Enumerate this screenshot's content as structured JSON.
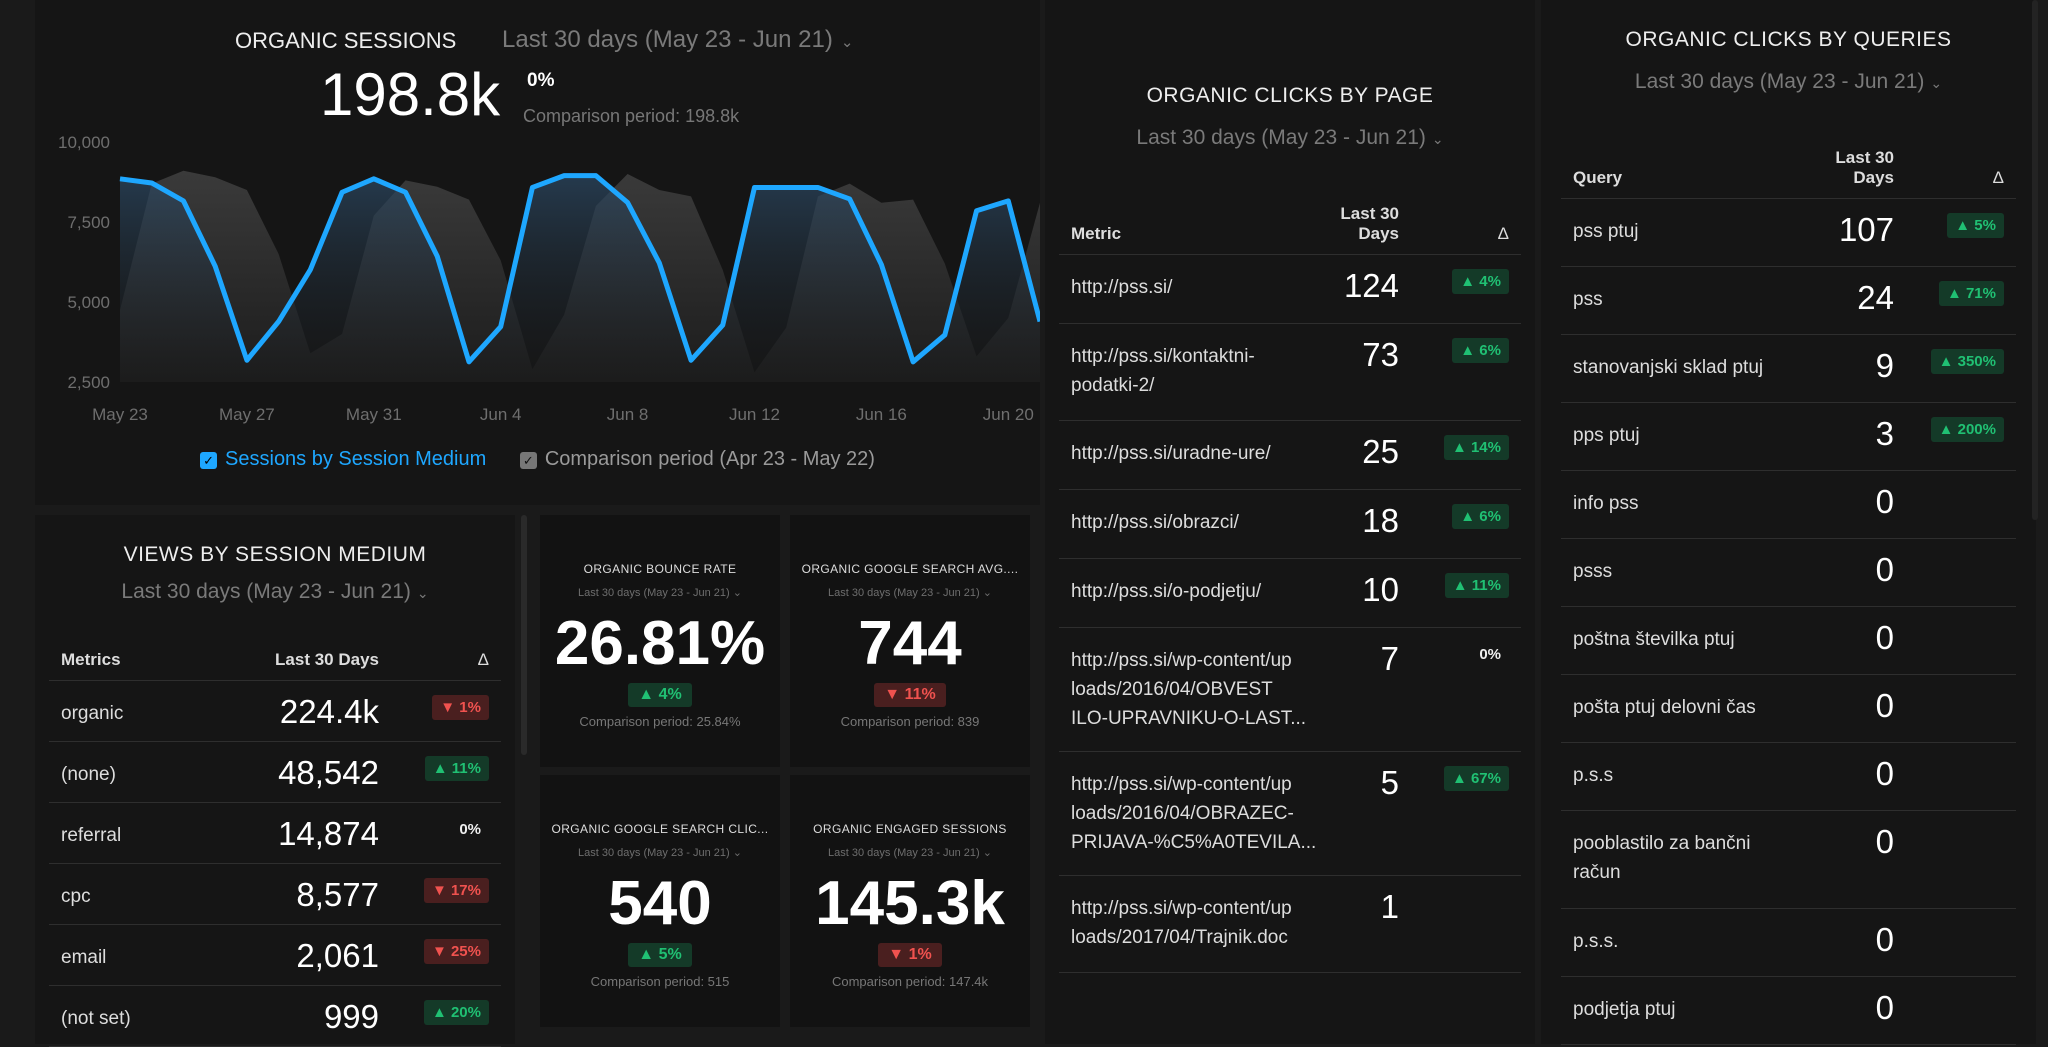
{
  "sessions": {
    "title": "ORGANIC SESSIONS",
    "date": "Last 30 days (May 23 - Jun 21)",
    "value": "198.8k",
    "change": "0%",
    "comparison": "Comparison period: 198.8k",
    "legend": [
      {
        "label": "Sessions by Session Medium",
        "color": "#1ea7ff"
      },
      {
        "label": "Comparison period (Apr 23 - May 22)",
        "color": "#777777"
      }
    ]
  },
  "chart_data": {
    "type": "area",
    "ylim": [
      2500,
      10000
    ],
    "yticks": [
      "10,000",
      "7,500",
      "5,000",
      "2,500"
    ],
    "ytick_values": [
      10000,
      7500,
      5000,
      2500
    ],
    "xticks": [
      "May 23",
      "May 27",
      "May 31",
      "Jun 4",
      "Jun 8",
      "Jun 12",
      "Jun 16",
      "Jun 20"
    ],
    "x": [
      "May 23",
      "May 24",
      "May 25",
      "May 26",
      "May 27",
      "May 28",
      "May 29",
      "May 30",
      "May 31",
      "Jun 1",
      "Jun 2",
      "Jun 3",
      "Jun 4",
      "Jun 5",
      "Jun 6",
      "Jun 7",
      "Jun 8",
      "Jun 9",
      "Jun 10",
      "Jun 11",
      "Jun 12",
      "Jun 13",
      "Jun 14",
      "Jun 15",
      "Jun 16",
      "Jun 17",
      "Jun 18",
      "Jun 19",
      "Jun 20",
      "Jun 21"
    ],
    "series": [
      {
        "name": "Sessions by Session Medium",
        "color": "#1ea7ff",
        "values": [
          8850,
          8720,
          8160,
          6120,
          3180,
          4390,
          6010,
          8430,
          8850,
          8430,
          6430,
          3130,
          4230,
          8580,
          8950,
          8950,
          8110,
          6220,
          3180,
          4280,
          8580,
          8580,
          8580,
          8220,
          6170,
          3130,
          3970,
          7850,
          8160,
          4390
        ]
      },
      {
        "name": "Comparison period (Apr 23 - May 22)",
        "color": "#3a3a3a",
        "values": [
          4750,
          8700,
          9100,
          8900,
          8500,
          6500,
          3400,
          4000,
          7700,
          8800,
          8600,
          8200,
          6300,
          2900,
          4600,
          8000,
          9000,
          8500,
          8300,
          6000,
          2800,
          4200,
          8300,
          8700,
          8100,
          8200,
          6200,
          3300,
          4500,
          8100
        ]
      }
    ],
    "grid": false,
    "legend": "bottom"
  },
  "views": {
    "title": "VIEWS BY SESSION MEDIUM",
    "date": "Last 30 days (May 23 - Jun 21)",
    "headers": [
      "Metrics",
      "Last 30 Days",
      "Δ"
    ],
    "rows": [
      [
        "organic",
        "224.4k",
        "▼ 1%",
        "down"
      ],
      [
        "(none)",
        "48,542",
        "▲ 11%",
        "up"
      ],
      [
        "referral",
        "14,874",
        "0%",
        "flat"
      ],
      [
        "cpc",
        "8,577",
        "▼ 17%",
        "down"
      ],
      [
        "email",
        "2,061",
        "▼ 25%",
        "down"
      ],
      [
        "(not set)",
        "999",
        "▲ 20%",
        "up"
      ]
    ]
  },
  "kpis": [
    {
      "title": "ORGANIC BOUNCE RATE",
      "date": "Last 30 days (May 23 - Jun 21)",
      "value": "26.81%",
      "change": "▲ 4%",
      "dir": "up",
      "comparison": "Comparison period: 25.84%"
    },
    {
      "title": "ORGANIC GOOGLE SEARCH AVG....",
      "date": "Last 30 days (May 23 - Jun 21)",
      "value": "744",
      "change": "▼ 11%",
      "dir": "down",
      "comparison": "Comparison period: 839"
    },
    {
      "title": "ORGANIC GOOGLE SEARCH CLIC...",
      "date": "Last 30 days (May 23 - Jun 21)",
      "value": "540",
      "change": "▲ 5%",
      "dir": "up",
      "comparison": "Comparison period: 515"
    },
    {
      "title": "ORGANIC ENGAGED SESSIONS",
      "date": "Last 30 days (May 23 - Jun 21)",
      "value": "145.3k",
      "change": "▼ 1%",
      "dir": "down",
      "comparison": "Comparison period: 147.4k"
    }
  ],
  "pages": {
    "title": "ORGANIC CLICKS BY PAGE",
    "date": "Last 30 days (May 23 - Jun 21)",
    "headers": [
      "Metric",
      "Last 30\nDays",
      "Δ"
    ],
    "rows": [
      [
        "http://pss.si/",
        "124",
        "▲ 4%",
        "up"
      ],
      [
        "http://pss.si/kontaktni-\npodatki-2/",
        "73",
        "▲ 6%",
        "up"
      ],
      [
        "http://pss.si/uradne-ure/",
        "25",
        "▲ 14%",
        "up"
      ],
      [
        "http://pss.si/obrazci/",
        "18",
        "▲ 6%",
        "up"
      ],
      [
        "http://pss.si/o-podjetju/",
        "10",
        "▲ 11%",
        "up"
      ],
      [
        "http://pss.si/wp-content/up\nloads/2016/04/OBVEST\nILO-UPRAVNIKU-O-LAST...",
        "7",
        "0%",
        "flat"
      ],
      [
        "http://pss.si/wp-content/up\nloads/2016/04/OBRAZEC-\nPRIJAVA-%C5%A0TEVILA...",
        "5",
        "▲ 67%",
        "up"
      ],
      [
        "http://pss.si/wp-content/up\nloads/2017/04/Trajnik.doc",
        "1",
        "",
        ""
      ]
    ]
  },
  "queries": {
    "title": "ORGANIC CLICKS BY QUERIES",
    "date": "Last 30 days (May 23 - Jun 21)",
    "headers": [
      "Query",
      "Last 30\nDays",
      "Δ"
    ],
    "rows": [
      [
        "pss ptuj",
        "107",
        "▲ 5%",
        "up"
      ],
      [
        "pss",
        "24",
        "▲ 71%",
        "up"
      ],
      [
        "stanovanjski sklad ptuj",
        "9",
        "▲ 350%",
        "up"
      ],
      [
        "pps ptuj",
        "3",
        "▲ 200%",
        "up"
      ],
      [
        "info pss",
        "0",
        "",
        ""
      ],
      [
        "psss",
        "0",
        "",
        ""
      ],
      [
        "poštna številka ptuj",
        "0",
        "",
        ""
      ],
      [
        "pošta ptuj delovni čas",
        "0",
        "",
        ""
      ],
      [
        "p.s.s",
        "0",
        "",
        ""
      ],
      [
        "pooblastilo za bančni\nračun",
        "0",
        "",
        ""
      ],
      [
        "p.s.s.",
        "0",
        "",
        ""
      ],
      [
        "podjetja ptuj",
        "0",
        "",
        ""
      ]
    ]
  }
}
